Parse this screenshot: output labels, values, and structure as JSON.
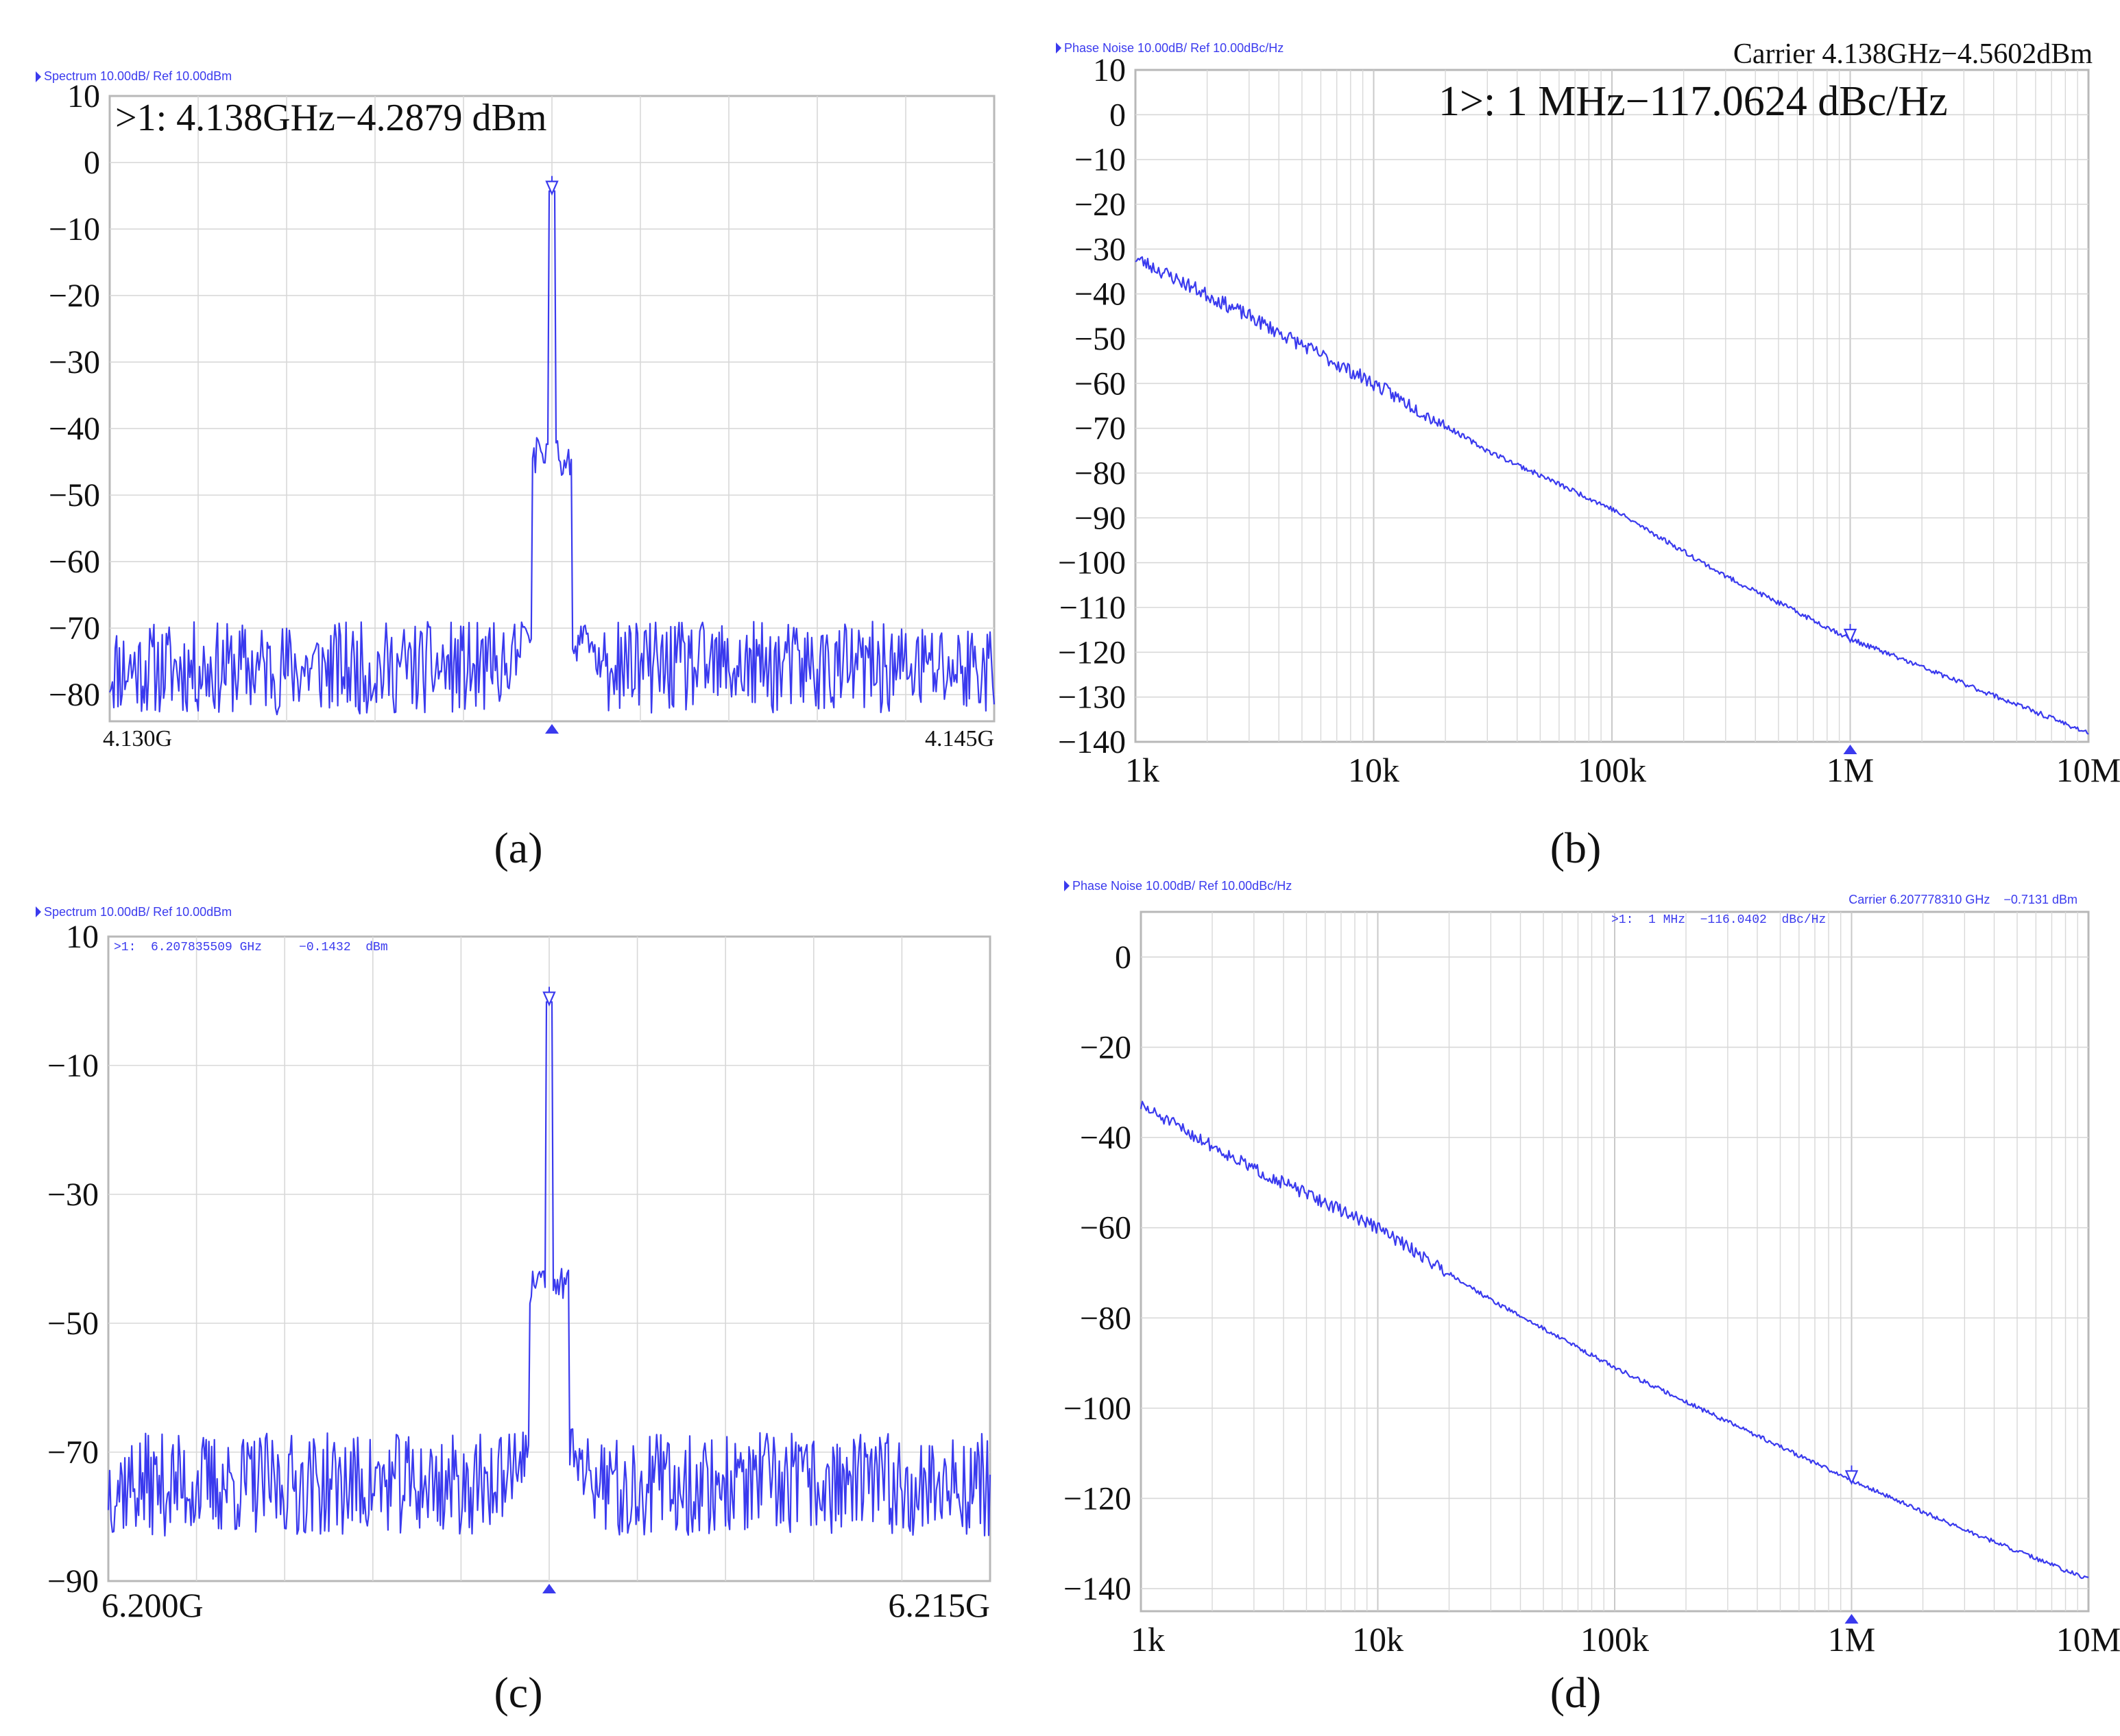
{
  "colors": {
    "trace": "#3a3aee",
    "grid": "#d8d8d8",
    "frame": "#b8b8b8",
    "text": "#111111",
    "instrument_text": "#3a3aee"
  },
  "chart_data": [
    {
      "id": "a",
      "type": "line",
      "panel_label": "(a)",
      "header": "Spectrum 10.00dB/ Ref 10.00dBm",
      "marker_text": ">1: 4.138GHz−4.2879 dBm",
      "x_scale": "linear",
      "xlim": [
        4.13,
        4.145
      ],
      "x_tick_labels": [
        "4.130G",
        "4.145G"
      ],
      "ylim": [
        -84,
        10
      ],
      "y_ticks": [
        10,
        0,
        -10,
        -20,
        -30,
        -40,
        -50,
        -60,
        -70,
        -80
      ],
      "y_tick_labels": [
        "10",
        "0",
        "−10",
        "−20",
        "−30",
        "−40",
        "−50",
        "−60",
        "−70",
        "−80"
      ],
      "marker": {
        "x": 4.1375,
        "y": -4.29
      },
      "series": [
        {
          "name": "spectrum",
          "kind": "spectrum",
          "center": 4.1375,
          "peak": -4.29,
          "noise_floor": -76,
          "noise_amplitude": 7,
          "seed": 11
        }
      ]
    },
    {
      "id": "b",
      "type": "line",
      "panel_label": "(b)",
      "header": "Phase Noise 10.00dB/ Ref 10.00dBc/Hz",
      "carrier_text": "Carrier 4.138GHz−4.5602dBm",
      "marker_text": "1>: 1 MHz−117.0624 dBc/Hz",
      "x_scale": "log",
      "xlim": [
        1000,
        10000000
      ],
      "x_tick_labels": [
        "1k",
        "10k",
        "100k",
        "1M",
        "10M"
      ],
      "ylim": [
        -140,
        10
      ],
      "y_ticks": [
        10,
        0,
        -10,
        -20,
        -30,
        -40,
        -50,
        -60,
        -70,
        -80,
        -90,
        -100,
        -110,
        -120,
        -130,
        -140
      ],
      "y_tick_labels": [
        "10",
        "0",
        "−10",
        "−20",
        "−30",
        "−40",
        "−50",
        "−60",
        "−70",
        "−80",
        "−90",
        "−100",
        "−110",
        "−120",
        "−130",
        "−140"
      ],
      "marker": {
        "x": 1000000,
        "y": -117.06
      },
      "series": [
        {
          "name": "phase noise",
          "kind": "phase",
          "points": [
            [
              1000,
              -32
            ],
            [
              3000,
              -45
            ],
            [
              10000,
              -60
            ],
            [
              30000,
              -75
            ],
            [
              100000,
              -88
            ],
            [
              300000,
              -103
            ],
            [
              1000000,
              -117
            ],
            [
              3000000,
              -127
            ],
            [
              10000000,
              -138
            ]
          ],
          "jitter": 1.6,
          "seed": 23
        }
      ]
    },
    {
      "id": "c",
      "type": "line",
      "panel_label": "(c)",
      "header": "Spectrum 10.00dB/ Ref 10.00dBm",
      "marker_text": ">1:  6.207835509 GHz     −0.1432  dBm",
      "x_scale": "linear",
      "xlim": [
        6.2,
        6.215
      ],
      "x_tick_labels": [
        "6.200G",
        "6.215G"
      ],
      "ylim": [
        -90,
        10
      ],
      "y_ticks": [
        10,
        -10,
        -30,
        -50,
        -70,
        -90
      ],
      "y_tick_labels": [
        "10",
        "−10",
        "−30",
        "−50",
        "−70",
        "−90"
      ],
      "marker": {
        "x": 6.2075,
        "y": -0.14
      },
      "series": [
        {
          "name": "spectrum",
          "kind": "spectrum",
          "center": 6.2075,
          "peak": -0.14,
          "noise_floor": -75,
          "noise_amplitude": 8,
          "seed": 37
        }
      ]
    },
    {
      "id": "d",
      "type": "line",
      "panel_label": "(d)",
      "header": "Phase Noise 10.00dB/ Ref 10.00dBc/Hz",
      "carrier_text": "Carrier 6.207778310 GHz    −0.7131 dBm",
      "marker_text": ">1:  1 MHz  −116.0402  dBc/Hz",
      "x_scale": "log",
      "xlim": [
        1000,
        10000000
      ],
      "x_tick_labels": [
        "1k",
        "10k",
        "100k",
        "1M",
        "10M"
      ],
      "ylim": [
        -145,
        10
      ],
      "y_ticks": [
        0,
        -20,
        -40,
        -60,
        -80,
        -100,
        -120,
        -140
      ],
      "y_tick_labels": [
        "0",
        "−20",
        "−40",
        "−60",
        "−80",
        "−100",
        "−120",
        "−140"
      ],
      "marker": {
        "x": 1000000,
        "y": -116.04
      },
      "series": [
        {
          "name": "phase noise",
          "kind": "phase",
          "points": [
            [
              1000,
              -33
            ],
            [
              3000,
              -47
            ],
            [
              10000,
              -60
            ],
            [
              30000,
              -76
            ],
            [
              100000,
              -91
            ],
            [
              300000,
              -103
            ],
            [
              1000000,
              -116
            ],
            [
              3000000,
              -127
            ],
            [
              10000000,
              -138
            ]
          ],
          "jitter": 1.4,
          "seed": 51
        }
      ]
    }
  ]
}
